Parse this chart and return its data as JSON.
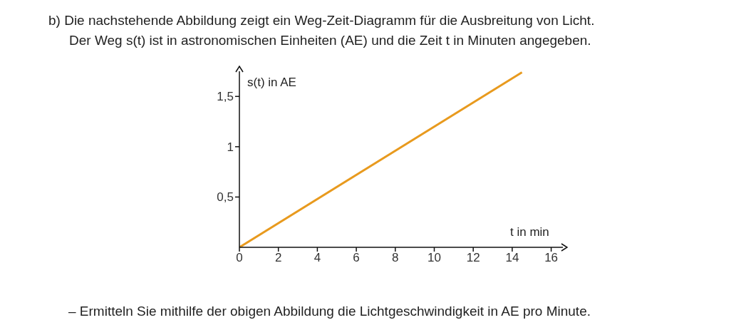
{
  "chart_data": {
    "type": "line",
    "title": "b) Die nachstehende Abbildung zeigt ein Weg-Zeit-Diagramm für die Ausbreitung von Licht.",
    "subtitle": "Der Weg s(t) ist in astronomischen Einheiten (AE) und die Zeit t in Minuten angegeben.",
    "xlabel": "t in min",
    "ylabel": "s(t) in AE",
    "annotations": [
      "– Ermitteln Sie mithilfe der obigen Abbildung die Lichtgeschwindigkeit in AE pro Minute."
    ],
    "x": [
      0,
      14.5
    ],
    "series": [
      {
        "color": "#e89a1e",
        "values": [
          0,
          1.74
        ]
      }
    ],
    "xlim": [
      0,
      16.6
    ],
    "xticks": [
      0,
      2,
      4,
      6,
      8,
      10,
      12,
      14,
      16
    ],
    "ylim": [
      0,
      1.75
    ],
    "yticks": [
      {
        "value": 0.5,
        "label": "0,5"
      },
      1,
      {
        "value": 1.5,
        "label": "1,5"
      }
    ],
    "grid": false,
    "legend": false,
    "marker": "none",
    "line_style": "solid"
  }
}
